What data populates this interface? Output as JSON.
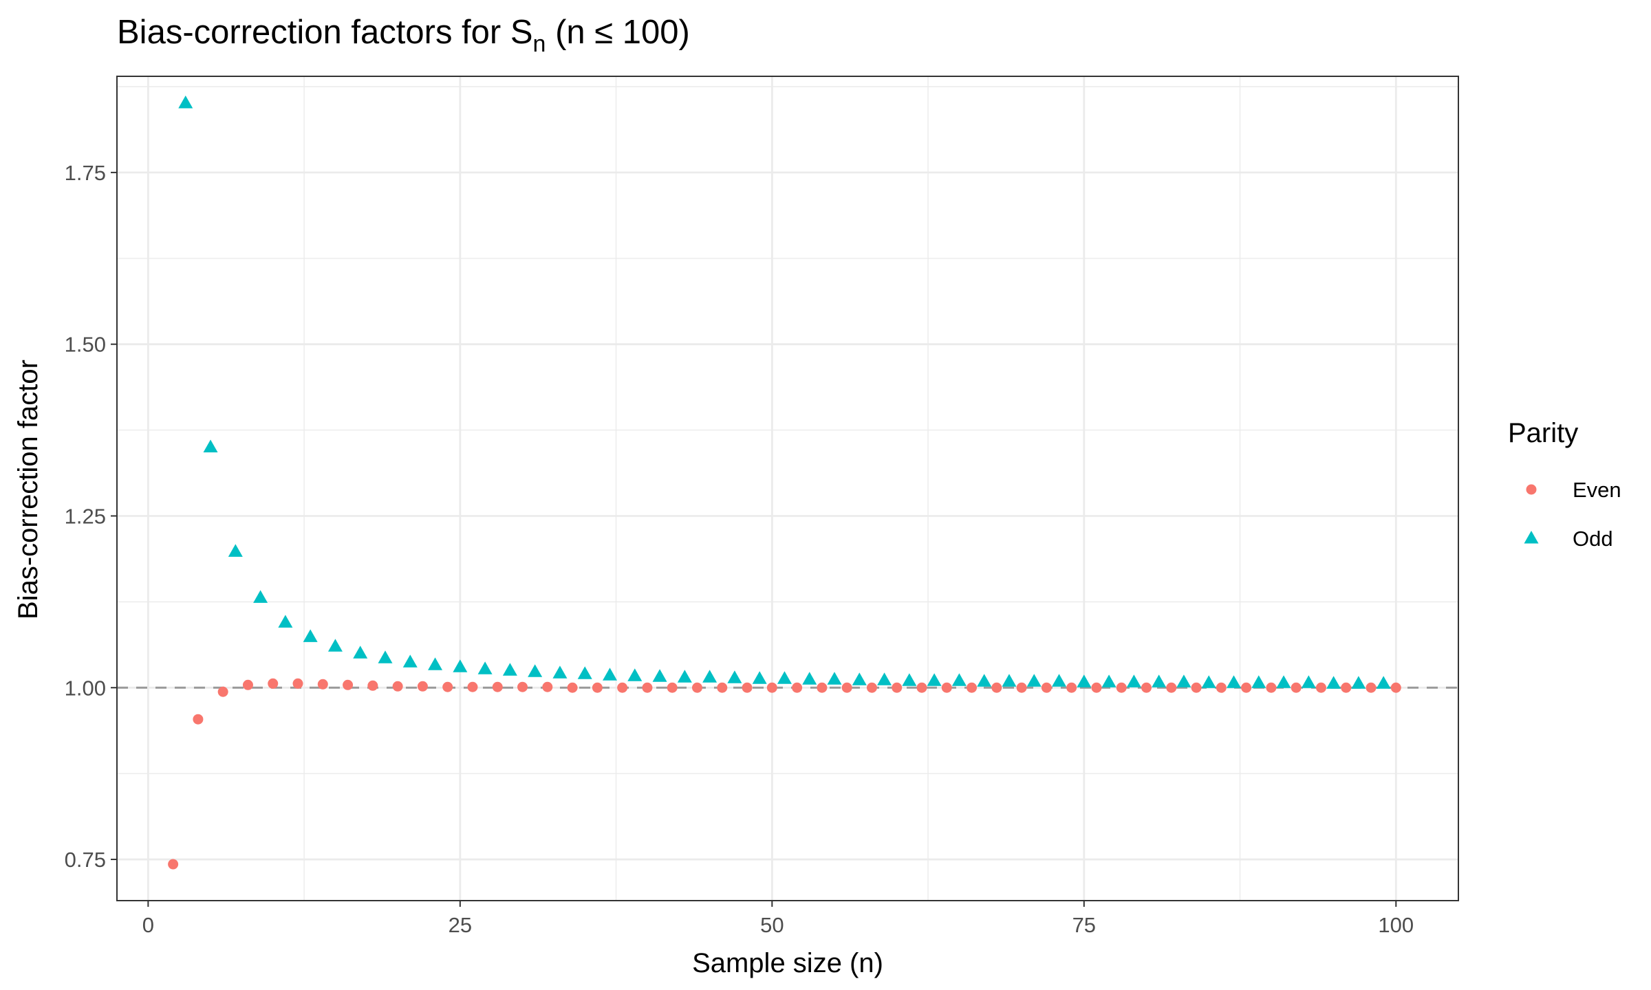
{
  "chart_data": {
    "type": "scatter",
    "title_main": "Bias-correction factors for S",
    "title_sub": "n",
    "title_tail": " (n ≤ 100)",
    "xlabel": "Sample size (n)",
    "ylabel": "Bias-correction factor",
    "xlim": [
      -2.5,
      105
    ],
    "ylim": [
      0.69,
      1.89
    ],
    "x_ticks": [
      0,
      25,
      50,
      75,
      100
    ],
    "x_tick_labels": [
      "0",
      "25",
      "50",
      "75",
      "100"
    ],
    "y_ticks": [
      0.75,
      1.0,
      1.25,
      1.5,
      1.75
    ],
    "y_tick_labels": [
      "0.75",
      "1.00",
      "1.25",
      "1.50",
      "1.75"
    ],
    "reference_line": {
      "y": 1.0,
      "style": "dashed",
      "color": "#999999"
    },
    "grid": true,
    "legend": {
      "title": "Parity",
      "position": "right"
    },
    "series": [
      {
        "name": "Even",
        "marker": "circle",
        "color": "#F8766D",
        "x": [
          2,
          4,
          6,
          8,
          10,
          12,
          14,
          16,
          18,
          20,
          22,
          24,
          26,
          28,
          30,
          32,
          34,
          36,
          38,
          40,
          42,
          44,
          46,
          48,
          50,
          52,
          54,
          56,
          58,
          60,
          62,
          64,
          66,
          68,
          70,
          72,
          74,
          76,
          78,
          80,
          82,
          84,
          86,
          88,
          90,
          92,
          94,
          96,
          98,
          100
        ],
        "y": [
          0.743,
          0.954,
          0.994,
          1.004,
          1.006,
          1.006,
          1.005,
          1.004,
          1.003,
          1.002,
          1.002,
          1.001,
          1.001,
          1.001,
          1.001,
          1.001,
          1.0,
          1.0,
          1.0,
          1.0,
          1.0,
          1.0,
          1.0,
          1.0,
          1.0,
          1.0,
          1.0,
          1.0,
          1.0,
          1.0,
          1.0,
          1.0,
          1.0,
          1.0,
          1.0,
          1.0,
          1.0,
          1.0,
          1.0,
          1.0,
          1.0,
          1.0,
          1.0,
          1.0,
          1.0,
          1.0,
          1.0,
          1.0,
          1.0,
          1.0
        ]
      },
      {
        "name": "Odd",
        "marker": "triangle",
        "color": "#00BFC4",
        "x": [
          3,
          5,
          7,
          9,
          11,
          13,
          15,
          17,
          19,
          21,
          23,
          25,
          27,
          29,
          31,
          33,
          35,
          37,
          39,
          41,
          43,
          45,
          47,
          49,
          51,
          53,
          55,
          57,
          59,
          61,
          63,
          65,
          67,
          69,
          71,
          73,
          75,
          77,
          79,
          81,
          83,
          85,
          87,
          89,
          91,
          93,
          95,
          97,
          99
        ],
        "y": [
          1.851,
          1.35,
          1.198,
          1.131,
          1.095,
          1.074,
          1.06,
          1.05,
          1.043,
          1.037,
          1.033,
          1.03,
          1.027,
          1.025,
          1.023,
          1.021,
          1.02,
          1.018,
          1.017,
          1.016,
          1.015,
          1.015,
          1.014,
          1.013,
          1.013,
          1.012,
          1.012,
          1.011,
          1.011,
          1.01,
          1.01,
          1.01,
          1.009,
          1.009,
          1.009,
          1.009,
          1.008,
          1.008,
          1.008,
          1.008,
          1.008,
          1.007,
          1.007,
          1.007,
          1.007,
          1.007,
          1.006,
          1.006,
          1.006
        ]
      }
    ]
  }
}
